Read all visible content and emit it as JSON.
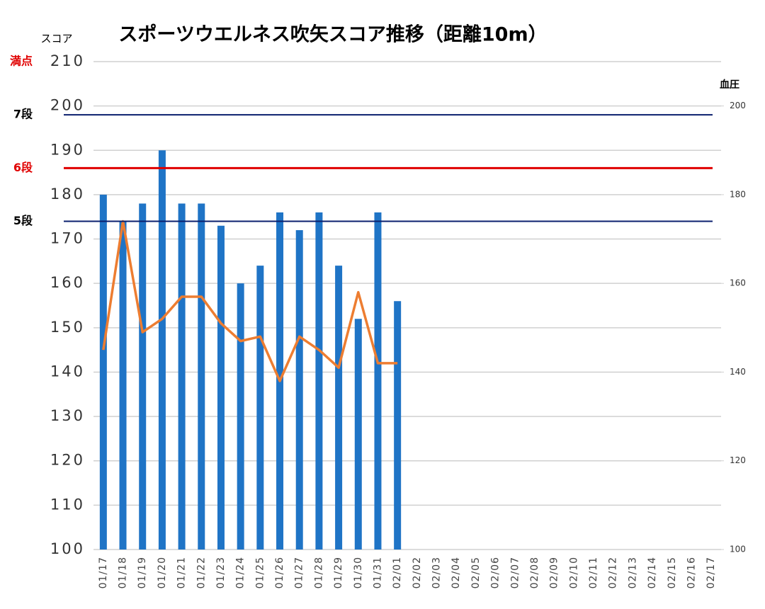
{
  "chart_data": {
    "type": "bar",
    "title": "スポーツウエルネス吹矢スコア推移（距離10m）",
    "y_label": "スコア",
    "y2_label": "血圧",
    "categories": [
      "01/17",
      "01/18",
      "01/19",
      "01/20",
      "01/21",
      "01/22",
      "01/23",
      "01/24",
      "01/25",
      "01/26",
      "01/27",
      "01/28",
      "01/29",
      "01/30",
      "01/31",
      "02/01",
      "02/02",
      "02/03",
      "02/04",
      "02/05",
      "02/06",
      "02/07",
      "02/08",
      "02/09",
      "02/10",
      "02/11",
      "02/12",
      "02/13",
      "02/14",
      "02/15",
      "02/16",
      "02/17"
    ],
    "series": [
      {
        "type": "bar",
        "color": "#1f74c6",
        "values": [
          180,
          174,
          178,
          190,
          178,
          178,
          173,
          160,
          164,
          176,
          172,
          176,
          164,
          152,
          176,
          156,
          null,
          null,
          null,
          null,
          null,
          null,
          null,
          null,
          null,
          null,
          null,
          null,
          null,
          null,
          null,
          null
        ]
      },
      {
        "type": "line",
        "axis": "y2",
        "color": "#ed7d31",
        "values": [
          145,
          174,
          149,
          152,
          157,
          157,
          151,
          147,
          148,
          138,
          148,
          145,
          141,
          158,
          142,
          142,
          null,
          null,
          null,
          null,
          null,
          null,
          null,
          null,
          null,
          null,
          null,
          null,
          null,
          null,
          null,
          null
        ]
      }
    ],
    "reference_lines": [
      {
        "label": "満点",
        "value": 210,
        "color": "#e00000",
        "show_line": false
      },
      {
        "label": "7段",
        "value": 198,
        "color": "#0a1f6e",
        "label_color": "#000000",
        "show_line": true
      },
      {
        "label": "6段",
        "value": 186,
        "color": "#e00000",
        "label_color": "#e00000",
        "show_line": true
      },
      {
        "label": "5段",
        "value": 174,
        "color": "#0a1f6e",
        "label_color": "#000000",
        "show_line": true
      }
    ],
    "ylim": [
      100,
      210
    ],
    "yticks": [
      100,
      110,
      120,
      130,
      140,
      150,
      160,
      170,
      180,
      190,
      200,
      210
    ],
    "y2lim": [
      100,
      210
    ],
    "y2ticks": [
      100,
      120,
      140,
      160,
      180,
      200
    ],
    "grid": true
  }
}
